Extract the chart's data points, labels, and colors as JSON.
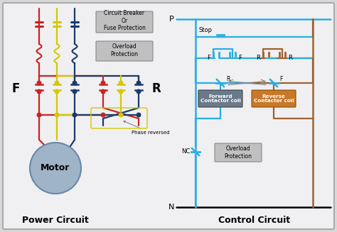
{
  "bg_color": "#d8d8d8",
  "panel_color": "#f0f0f2",
  "title_left": "Power Circuit",
  "title_right": "Control Circuit",
  "wire_red": "#cc2222",
  "wire_yellow": "#d4c800",
  "wire_blue": "#1a3a6e",
  "wire_cyan": "#2aade2",
  "wire_brown": "#a06030",
  "wire_gray": "#888888",
  "forward_fill": "#6a7a8a",
  "reverse_fill": "#c87828",
  "motor_fill": "#a0b4c8",
  "motor_edge": "#6688aa",
  "box_fill": "#c0c0c0",
  "box_edge": "#888888",
  "text_color": "#111111",
  "label_F": "F",
  "label_R": "R",
  "label_P": "P",
  "label_N": "N",
  "label_Stop": "Stop",
  "label_NC": "NC",
  "label_Forward": "Forward\nContactor coil",
  "label_Reverse": "Reverse\nContactor coil",
  "label_Motor": "Motor",
  "label_Phase": "Phase reversed",
  "label_CB": "Circuit Breaker\nOr\nFuse Protection",
  "label_OL_power": "Overload\nProtection",
  "label_OL_control": "Overload\nProtection",
  "title_fontsize": 9,
  "label_fontsize": 7
}
